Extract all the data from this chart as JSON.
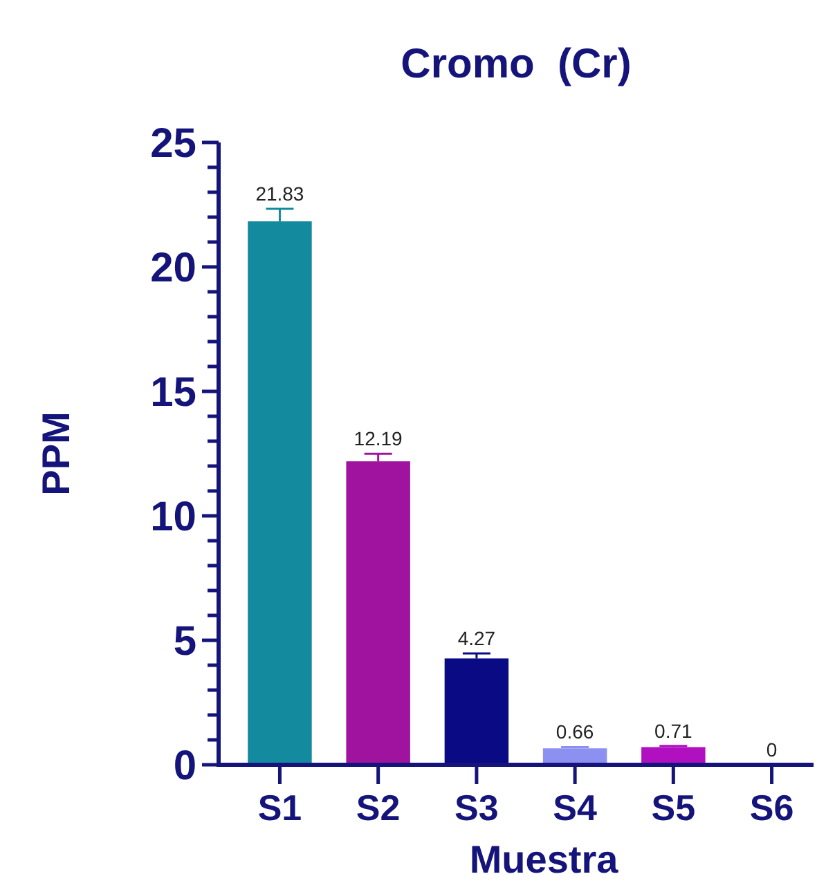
{
  "chart_data": {
    "type": "bar",
    "title": "Cromo  (Cr)",
    "xlabel": "Muestra",
    "ylabel": "PPM",
    "categories": [
      "S1",
      "S2",
      "S3",
      "S4",
      "S5",
      "S6"
    ],
    "values": [
      21.83,
      12.19,
      4.27,
      0.66,
      0.71,
      0
    ],
    "colors": [
      "#138a9e",
      "#a0139f",
      "#0a0a85",
      "#8c90f0",
      "#b010c0",
      "#b010c0"
    ],
    "errors": [
      0.5,
      0.3,
      0.2,
      0.05,
      0.05,
      null
    ],
    "data_labels": true,
    "ylim": [
      0,
      25
    ],
    "yticks": [
      0,
      {
        "value": 1,
        "label": null
      },
      {
        "value": 2,
        "label": null
      },
      {
        "value": 3,
        "label": null
      },
      {
        "value": 4,
        "label": null
      },
      5,
      {
        "value": 6,
        "label": null
      },
      {
        "value": 7,
        "label": null
      },
      {
        "value": 8,
        "label": null
      },
      {
        "value": 9,
        "label": null
      },
      10,
      {
        "value": 11,
        "label": null
      },
      {
        "value": 12,
        "label": null
      },
      {
        "value": 13,
        "label": null
      },
      {
        "value": 14,
        "label": null
      },
      15,
      {
        "value": 16,
        "label": null
      },
      {
        "value": 17,
        "label": null
      },
      {
        "value": 18,
        "label": null
      },
      {
        "value": 19,
        "label": null
      },
      20,
      {
        "value": 21,
        "label": null
      },
      {
        "value": 22,
        "label": null
      },
      {
        "value": 23,
        "label": null
      },
      {
        "value": 24,
        "label": null
      },
      25
    ],
    "grid": false
  }
}
